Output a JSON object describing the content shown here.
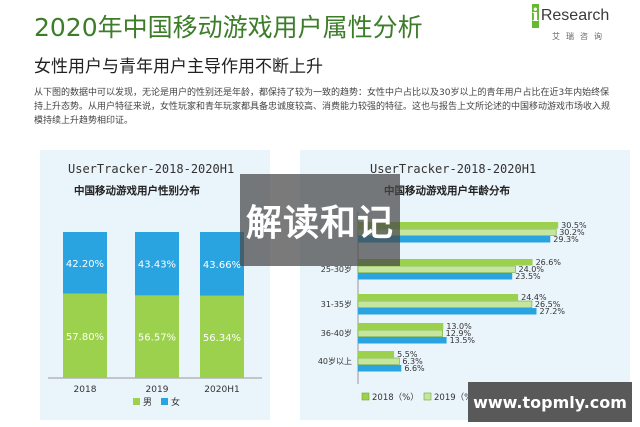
{
  "header": {
    "title": "2020年中国移动游戏用户属性分析",
    "subtitle": "女性用户与青年用户主导作用不断上升",
    "logo_text": "Research",
    "logo_mark": "i",
    "logo_sub": "艾瑞咨询"
  },
  "body_text": "从下图的数据中可以发现，无论是用户的性别还是年龄，都保持了较为一致的趋势：女性中户占比以及30岁以上的青年用户占比在近3年内始终保持上升态势。从用户特征来说，女性玩家和青年玩家都具备忠诚度较高、消费能力较强的特征。这也与报告上文所论述的中国移动游戏市场收入规模持续上升趋势相印证。",
  "colors": {
    "green": "#9bd14c",
    "blue": "#2aa4e0",
    "accent": "#3d7d2a"
  },
  "overlay_text": "解读和记",
  "watermark_text": "www.topmly.com",
  "chart_data": [
    {
      "type": "bar",
      "stacked": true,
      "title": "UserTracker-2018-2020H1",
      "subtitle": "中国移动游戏用户性别分布",
      "categories": [
        "2018",
        "2019",
        "2020H1"
      ],
      "series": [
        {
          "name": "男",
          "values": [
            57.8,
            56.57,
            56.34
          ],
          "labels": [
            "57.80%",
            "56.57%",
            "56.34%"
          ],
          "color": "#9bd14c"
        },
        {
          "name": "女",
          "values": [
            42.2,
            43.43,
            43.66
          ],
          "labels": [
            "42.20%",
            "43.43%",
            "43.66%"
          ],
          "color": "#2aa4e0"
        }
      ],
      "ylim": [
        0,
        100
      ],
      "legend": "bottom"
    },
    {
      "type": "bar",
      "orientation": "horizontal",
      "title": "UserTracker-2018-2020H1",
      "subtitle": "中国移动游戏用户年龄分布",
      "categories": [
        "",
        "25-30岁",
        "31-35岁",
        "36-40岁",
        "40岁以上"
      ],
      "series": [
        {
          "name": "2018（%）",
          "values": [
            30.5,
            26.6,
            24.4,
            13.0,
            5.5
          ],
          "labels": [
            "30.5%",
            "26.6%",
            "24.4%",
            "13.0%",
            "5.5%"
          ],
          "color": "#9bd14c"
        },
        {
          "name": "2019（%）",
          "values": [
            30.2,
            24.0,
            26.5,
            12.9,
            6.3
          ],
          "labels": [
            "30.2%",
            "24.0%",
            "26.5%",
            "12.9%",
            "6.3%"
          ],
          "color": "#c6e6a0"
        },
        {
          "name": "",
          "values": [
            29.3,
            23.5,
            27.2,
            13.5,
            6.6
          ],
          "labels": [
            "29.3%",
            "23.5%",
            "27.2%",
            "13.5%",
            "6.6%"
          ],
          "color": "#2aa4e0"
        }
      ],
      "xlim": [
        0,
        32
      ],
      "legend": "bottom"
    }
  ]
}
